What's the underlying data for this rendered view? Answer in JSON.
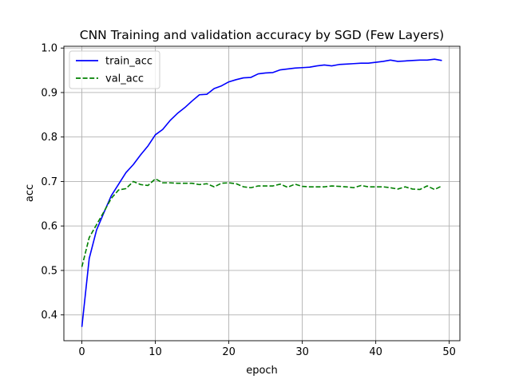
{
  "chart_data": {
    "type": "line",
    "title": "CNN Training and validation accuracy by SGD (Few Layers)",
    "xlabel": "epoch",
    "ylabel": "acc",
    "xlim": [
      -2.45,
      51.45
    ],
    "ylim": [
      0.342,
      1.004
    ],
    "xticks": [
      0,
      10,
      20,
      30,
      40,
      50
    ],
    "yticks": [
      0.4,
      0.5,
      0.6,
      0.7,
      0.8,
      0.9,
      1.0
    ],
    "xtick_labels": [
      "0",
      "10",
      "20",
      "30",
      "40",
      "50"
    ],
    "ytick_labels": [
      "0.4",
      "0.5",
      "0.6",
      "0.7",
      "0.8",
      "0.9",
      "1.0"
    ],
    "grid": true,
    "legend_position": "top-left",
    "x": [
      0,
      1,
      2,
      3,
      4,
      5,
      6,
      7,
      8,
      9,
      10,
      11,
      12,
      13,
      14,
      15,
      16,
      17,
      18,
      19,
      20,
      21,
      22,
      23,
      24,
      25,
      26,
      27,
      28,
      29,
      30,
      31,
      32,
      33,
      34,
      35,
      36,
      37,
      38,
      39,
      40,
      41,
      42,
      43,
      44,
      45,
      46,
      47,
      48,
      49
    ],
    "series": [
      {
        "name": "train_acc",
        "color": "#0000ff",
        "style": "solid",
        "values": [
          0.373,
          0.527,
          0.591,
          0.63,
          0.668,
          0.694,
          0.72,
          0.738,
          0.76,
          0.78,
          0.805,
          0.817,
          0.837,
          0.853,
          0.866,
          0.881,
          0.895,
          0.896,
          0.909,
          0.915,
          0.924,
          0.929,
          0.933,
          0.934,
          0.942,
          0.944,
          0.945,
          0.951,
          0.953,
          0.955,
          0.956,
          0.957,
          0.96,
          0.962,
          0.96,
          0.963,
          0.964,
          0.965,
          0.966,
          0.966,
          0.968,
          0.97,
          0.973,
          0.97,
          0.971,
          0.972,
          0.973,
          0.973,
          0.975,
          0.972
        ]
      },
      {
        "name": "val_acc",
        "color": "#008000",
        "style": "dashed",
        "values": [
          0.508,
          0.574,
          0.603,
          0.632,
          0.662,
          0.681,
          0.684,
          0.7,
          0.693,
          0.691,
          0.706,
          0.697,
          0.697,
          0.696,
          0.696,
          0.696,
          0.693,
          0.695,
          0.688,
          0.696,
          0.697,
          0.695,
          0.688,
          0.686,
          0.69,
          0.69,
          0.69,
          0.694,
          0.687,
          0.694,
          0.689,
          0.688,
          0.688,
          0.688,
          0.69,
          0.689,
          0.688,
          0.686,
          0.691,
          0.688,
          0.688,
          0.688,
          0.686,
          0.683,
          0.688,
          0.683,
          0.682,
          0.69,
          0.682,
          0.69
        ]
      }
    ]
  }
}
